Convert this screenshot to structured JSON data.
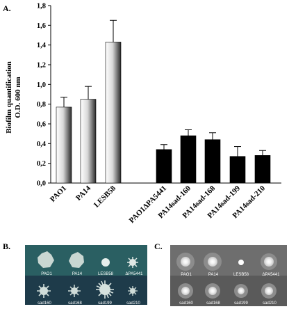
{
  "panels": {
    "a": {
      "label": "A."
    },
    "b": {
      "label": "B.",
      "row1": [
        "PAO1",
        "PA14",
        "LESB58",
        "ΔPA5441"
      ],
      "row2": [
        "sad160",
        "sad168",
        "sad199",
        "sad210"
      ]
    },
    "c": {
      "label": "C.",
      "row1": [
        "PAO1",
        "PA14",
        "LESB58",
        "ΔPA5441"
      ],
      "row2": [
        "sad160",
        "sad168",
        "sad199",
        "sad210"
      ]
    }
  },
  "chart_data": {
    "type": "bar",
    "title": "",
    "ylabel_line1": "Biofilm quantification",
    "ylabel_line2": "O.D. 600 nm",
    "xlabel": "",
    "ylim": [
      0,
      1.8
    ],
    "yticks": [
      "0,0",
      "0,2",
      "0,4",
      "0,6",
      "0,8",
      "1,0",
      "1,2",
      "1,4",
      "1,6",
      "1,8"
    ],
    "grid": false,
    "categories": [
      "PAO1",
      "PA14",
      "LESB58",
      "PAO1ΔPA5441",
      "PA14sad-160",
      "PA14sad-168",
      "PA14sad-199",
      "PA14sad-210"
    ],
    "values": [
      0.77,
      0.85,
      1.43,
      0.34,
      0.48,
      0.44,
      0.27,
      0.28
    ],
    "errors": [
      0.1,
      0.13,
      0.22,
      0.05,
      0.06,
      0.07,
      0.1,
      0.05
    ],
    "colors": {
      "group1": "gradient-grey",
      "group2": "#000000"
    }
  }
}
